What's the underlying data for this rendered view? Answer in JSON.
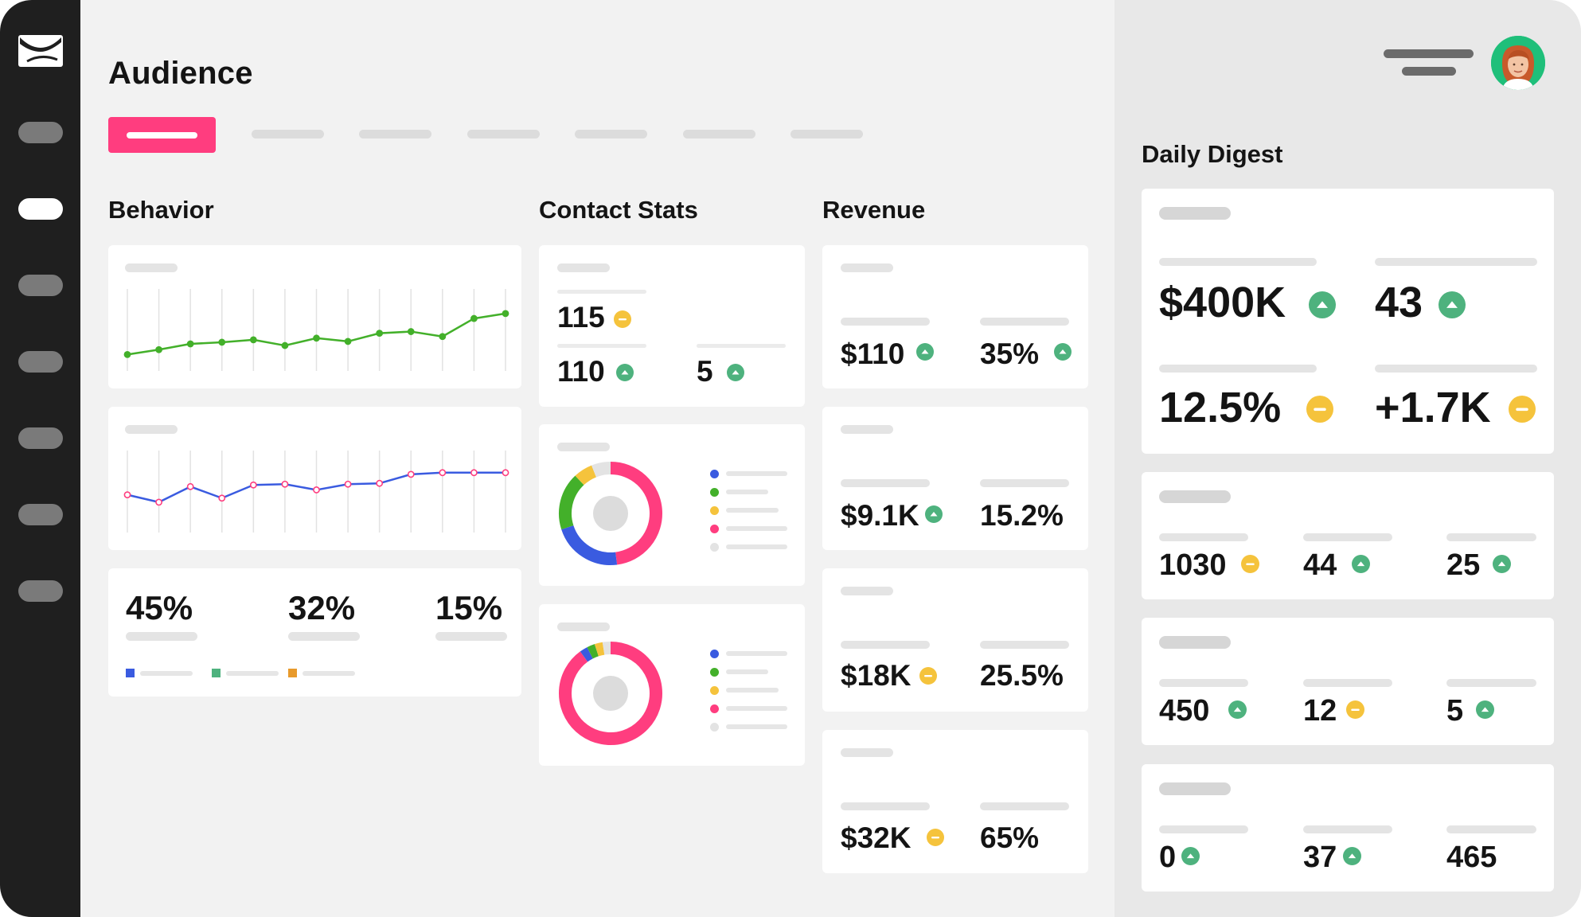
{
  "app": {
    "title": "Audience",
    "nav_icons": [
      "mail-logo-icon",
      "nav-item",
      "nav-item-active",
      "nav-item",
      "nav-item",
      "nav-item",
      "nav-item",
      "nav-item"
    ]
  },
  "colors": {
    "accent": "#ff3d7f",
    "up": "#4eb27e",
    "neutral": "#f5c33c",
    "green_line": "#43b02a",
    "blue_line": "#3a5be0",
    "pink_point": "#ff3d7f"
  },
  "sections": {
    "behavior": "Behavior",
    "contact_stats": "Contact Stats",
    "revenue": "Revenue",
    "daily_digest": "Daily Digest"
  },
  "behavior": {
    "pct1": "45%",
    "pct2": "32%",
    "pct3": "15%",
    "legend_colors": [
      "#3a5be0",
      "#4eb27e",
      "#e89a2c"
    ]
  },
  "contact_stats": {
    "top": "115",
    "left": "110",
    "right": "5"
  },
  "revenue": {
    "r1a": "$110",
    "r1b": "35%",
    "r2a": "$9.1K",
    "r2b": "15.2%",
    "r3a": "$18K",
    "r3b": "25.5%",
    "r4a": "$32K",
    "r4b": "65%"
  },
  "digest": {
    "big1": "$400K",
    "big2": "43",
    "big3": "12.5%",
    "big4": "+1.7K",
    "r1": [
      "1030",
      "44",
      "25"
    ],
    "r2": [
      "450",
      "12",
      "5"
    ],
    "r3": [
      "0",
      "37",
      "465"
    ]
  },
  "chart_data": [
    {
      "type": "line",
      "x": [
        1,
        2,
        3,
        4,
        5,
        6,
        7,
        8,
        9,
        10,
        11,
        12,
        13
      ],
      "series": [
        {
          "values": [
            2.0,
            2.6,
            3.3,
            3.5,
            3.8,
            3.1,
            4.0,
            3.6,
            4.6,
            4.8,
            4.2,
            6.4,
            7.0
          ]
        }
      ],
      "ylim": [
        0,
        10
      ],
      "grid": true
    },
    {
      "type": "line",
      "x": [
        1,
        2,
        3,
        4,
        5,
        6,
        7,
        8,
        9,
        10,
        11,
        12,
        13
      ],
      "series": [
        {
          "values": [
            4.6,
            3.7,
            5.6,
            4.2,
            5.8,
            5.9,
            5.2,
            5.9,
            6.0,
            7.1,
            7.3,
            7.3,
            7.3
          ]
        }
      ],
      "ylim": [
        0,
        10
      ],
      "grid": true
    },
    {
      "type": "pie",
      "donut": true,
      "values": [
        48,
        22,
        18,
        6,
        6
      ],
      "colors": [
        "#ff3d7f",
        "#3a5be0",
        "#43b02a",
        "#f5c33c",
        "#e3e3e3"
      ]
    },
    {
      "type": "pie",
      "donut": true,
      "values": [
        90,
        2.5,
        2.5,
        2.5,
        2.5
      ],
      "colors": [
        "#ff3d7f",
        "#3a5be0",
        "#43b02a",
        "#f5c33c",
        "#e3e3e3"
      ]
    }
  ]
}
